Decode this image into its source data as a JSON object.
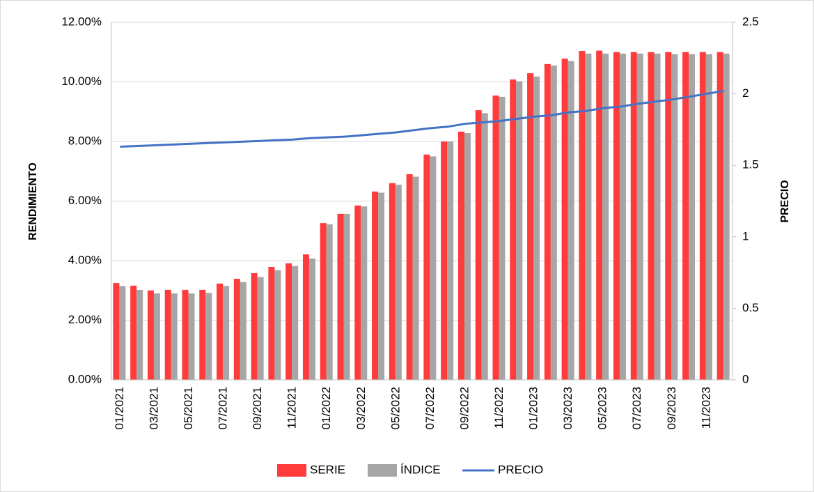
{
  "chart_data": {
    "type": "bar",
    "categories": [
      "01/2021",
      null,
      "03/2021",
      null,
      "05/2021",
      null,
      "07/2021",
      null,
      "09/2021",
      null,
      "11/2021",
      null,
      "01/2022",
      null,
      "03/2022",
      null,
      "05/2022",
      null,
      "07/2022",
      null,
      "09/2022",
      null,
      "11/2022",
      null,
      "01/2023",
      null,
      "03/2023",
      null,
      "05/2023",
      null,
      "07/2023",
      null,
      "09/2023",
      null,
      "11/2023",
      null
    ],
    "y_label": "RENDIMIENTO",
    "y2_label": "PRECIO",
    "ylim": [
      0,
      12
    ],
    "yticks": [
      {
        "value": 0,
        "label": "0.00%"
      },
      {
        "value": 2,
        "label": "2.00%"
      },
      {
        "value": 4,
        "label": "4.00%"
      },
      {
        "value": 6,
        "label": "6.00%"
      },
      {
        "value": 8,
        "label": "8.00%"
      },
      {
        "value": 10,
        "label": "10.00%"
      },
      {
        "value": 12,
        "label": "12.00%"
      }
    ],
    "y2lim": [
      0,
      2.5
    ],
    "y2ticks": [
      0,
      0.5,
      1,
      1.5,
      2,
      2.5
    ],
    "grid": true,
    "legend": "bottom",
    "series": [
      {
        "name": "SERIE",
        "color": "#ff3b3b",
        "type": "bar",
        "values": [
          3.25,
          3.16,
          3.0,
          3.02,
          3.02,
          3.02,
          3.23,
          3.39,
          3.58,
          3.79,
          3.91,
          4.21,
          5.26,
          5.57,
          5.85,
          6.32,
          6.6,
          6.9,
          7.56,
          8.0,
          8.33,
          9.05,
          9.54,
          10.08,
          10.29,
          10.6,
          10.78,
          11.04,
          11.05,
          11.0,
          11.0,
          11.0,
          11.0,
          11.0,
          11.0,
          11.0
        ]
      },
      {
        "name": "ÍNDICE",
        "color": "#a6a6a6",
        "type": "bar",
        "values": [
          3.15,
          3.02,
          2.9,
          2.9,
          2.9,
          2.92,
          3.15,
          3.28,
          3.45,
          3.68,
          3.82,
          4.07,
          5.22,
          5.57,
          5.82,
          6.28,
          6.55,
          6.82,
          7.5,
          8.0,
          8.28,
          8.95,
          9.5,
          10.02,
          10.18,
          10.55,
          10.7,
          10.95,
          10.95,
          10.95,
          10.95,
          10.95,
          10.93,
          10.93,
          10.93,
          10.95
        ]
      },
      {
        "name": "PRECIO",
        "color": "#4472c4",
        "type": "line",
        "axis": "y2",
        "values": [
          1.63,
          1.635,
          1.64,
          1.645,
          1.65,
          1.655,
          1.66,
          1.665,
          1.67,
          1.675,
          1.68,
          1.69,
          1.695,
          1.7,
          1.71,
          1.72,
          1.73,
          1.745,
          1.76,
          1.77,
          1.79,
          1.8,
          1.81,
          1.825,
          1.84,
          1.85,
          1.87,
          1.88,
          1.9,
          1.91,
          1.93,
          1.945,
          1.96,
          1.98,
          2.0,
          2.02
        ]
      }
    ]
  }
}
